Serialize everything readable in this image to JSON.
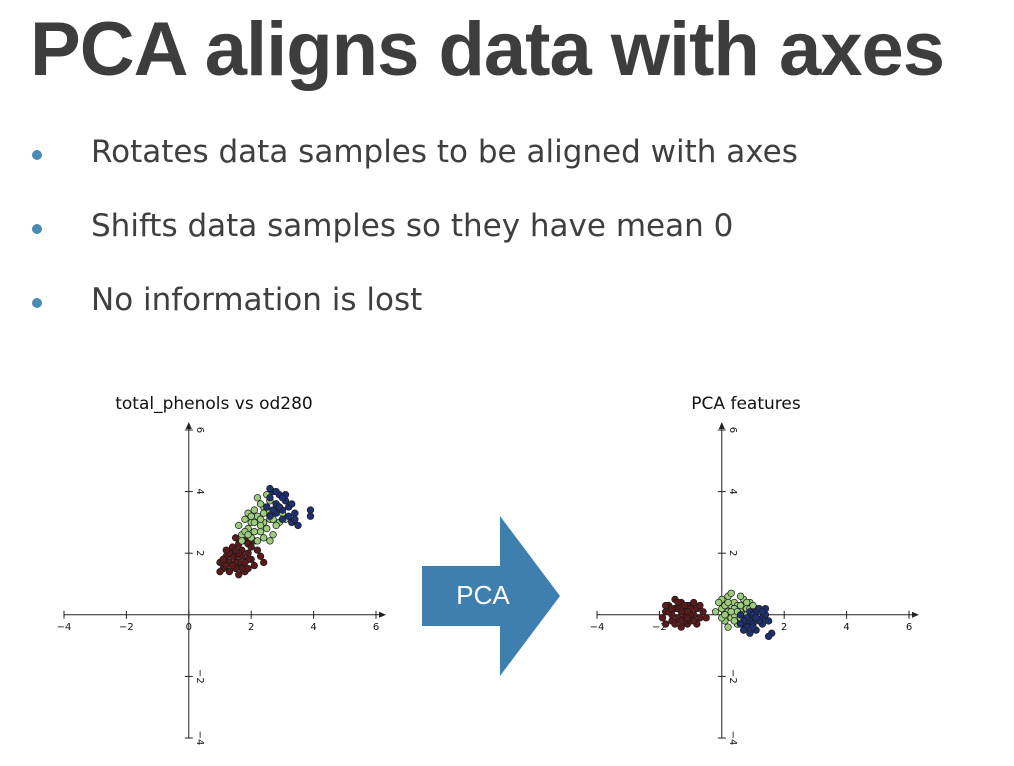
{
  "slide": {
    "title": "PCA aligns data with axes",
    "bullets": [
      "Rotates data samples to be aligned with axes",
      "Shifts data samples so they have mean 0",
      "No information is lost"
    ],
    "arrow_label": "PCA"
  },
  "colors": {
    "bullet": "#4a8ab3",
    "arrow": "#3f7fb0",
    "class_0": "#5b1a1a",
    "class_1": "#9ccc7c",
    "class_2": "#1e2f72"
  },
  "chart_data": [
    {
      "type": "scatter",
      "title": "total_phenols vs od280",
      "xlim": [
        -4,
        6
      ],
      "ylim": [
        -4,
        6
      ],
      "xticks": [
        -4,
        -2,
        0,
        2,
        4,
        6
      ],
      "yticks": [
        -4,
        -2,
        2,
        4,
        6
      ],
      "tick_labels_x": [
        "−4",
        "−2",
        "0",
        "2",
        "4",
        "6"
      ],
      "tick_labels_y": [
        "−4",
        "−2",
        "2",
        "4",
        "6"
      ],
      "grid": false,
      "series": [
        {
          "color_key": "class_0",
          "points": [
            [
              1.1,
              1.5
            ],
            [
              1.3,
              1.7
            ],
            [
              1.5,
              1.9
            ],
            [
              1.7,
              1.6
            ],
            [
              1.9,
              2.0
            ],
            [
              1.4,
              2.2
            ],
            [
              1.8,
              2.4
            ],
            [
              1.2,
              1.9
            ],
            [
              1.6,
              1.3
            ],
            [
              2.0,
              1.8
            ],
            [
              1.0,
              1.7
            ],
            [
              1.5,
              1.5
            ],
            [
              1.7,
              2.1
            ],
            [
              2.1,
              1.6
            ],
            [
              1.3,
              1.4
            ],
            [
              1.9,
              2.3
            ],
            [
              1.5,
              2.5
            ],
            [
              1.1,
              1.8
            ],
            [
              2.2,
              2.1
            ],
            [
              1.6,
              1.7
            ],
            [
              1.4,
              1.9
            ],
            [
              1.8,
              1.4
            ],
            [
              2.0,
              2.2
            ],
            [
              1.2,
              1.6
            ],
            [
              1.7,
              1.9
            ],
            [
              1.5,
              1.7
            ],
            [
              1.9,
              1.8
            ],
            [
              1.3,
              2.0
            ],
            [
              1.6,
              2.3
            ],
            [
              2.3,
              1.9
            ],
            [
              1.0,
              1.4
            ],
            [
              1.4,
              1.6
            ],
            [
              1.8,
              1.7
            ],
            [
              2.1,
              2.4
            ],
            [
              1.6,
              2.0
            ],
            [
              1.2,
              2.1
            ],
            [
              1.9,
              1.5
            ],
            [
              1.5,
              2.1
            ],
            [
              1.7,
              1.5
            ],
            [
              2.4,
              1.7
            ]
          ]
        },
        {
          "color_key": "class_1",
          "points": [
            [
              1.7,
              2.6
            ],
            [
              2.0,
              3.0
            ],
            [
              2.2,
              3.2
            ],
            [
              2.4,
              3.5
            ],
            [
              1.9,
              2.8
            ],
            [
              2.6,
              3.1
            ],
            [
              2.3,
              2.7
            ],
            [
              2.1,
              3.4
            ],
            [
              2.8,
              3.6
            ],
            [
              1.8,
              3.1
            ],
            [
              2.5,
              2.8
            ],
            [
              2.7,
              3.3
            ],
            [
              2.0,
              2.5
            ],
            [
              2.3,
              3.6
            ],
            [
              2.9,
              3.0
            ],
            [
              1.6,
              2.9
            ],
            [
              2.2,
              2.4
            ],
            [
              2.4,
              3.0
            ],
            [
              2.6,
              3.7
            ],
            [
              1.9,
              3.3
            ],
            [
              2.1,
              2.7
            ],
            [
              2.8,
              2.9
            ],
            [
              2.5,
              3.4
            ],
            [
              2.0,
              3.2
            ],
            [
              2.3,
              3.1
            ],
            [
              2.7,
              2.6
            ],
            [
              1.7,
              2.4
            ],
            [
              2.4,
              2.5
            ],
            [
              2.2,
              3.8
            ],
            [
              3.0,
              3.3
            ],
            [
              2.6,
              2.4
            ],
            [
              1.8,
              2.7
            ],
            [
              2.9,
              3.5
            ],
            [
              2.1,
              3.0
            ],
            [
              2.5,
              3.9
            ],
            [
              2.3,
              2.9
            ],
            [
              3.1,
              3.1
            ],
            [
              1.9,
              2.6
            ],
            [
              2.7,
              3.1
            ],
            [
              2.4,
              3.3
            ]
          ]
        },
        {
          "color_key": "class_2",
          "points": [
            [
              2.6,
              3.8
            ],
            [
              2.8,
              3.6
            ],
            [
              3.0,
              3.4
            ],
            [
              2.7,
              4.0
            ],
            [
              3.2,
              3.2
            ],
            [
              2.9,
              3.9
            ],
            [
              3.3,
              3.0
            ],
            [
              2.5,
              3.5
            ],
            [
              3.1,
              3.7
            ],
            [
              2.8,
              3.3
            ],
            [
              3.4,
              3.3
            ],
            [
              2.6,
              4.1
            ],
            [
              3.0,
              3.1
            ],
            [
              2.9,
              3.5
            ],
            [
              3.2,
              3.5
            ],
            [
              3.5,
              2.9
            ],
            [
              2.7,
              3.4
            ],
            [
              3.1,
              3.9
            ],
            [
              2.8,
              4.0
            ],
            [
              3.3,
              3.6
            ],
            [
              3.9,
              3.4
            ],
            [
              3.9,
              3.2
            ],
            [
              2.6,
              3.2
            ],
            [
              3.0,
              3.8
            ],
            [
              3.4,
              3.1
            ]
          ]
        }
      ]
    },
    {
      "type": "scatter",
      "title": "PCA features",
      "xlim": [
        -4,
        6
      ],
      "ylim": [
        -4,
        6
      ],
      "xticks": [
        -4,
        -2,
        0,
        2,
        4,
        6
      ],
      "yticks": [
        -4,
        -2,
        2,
        4,
        6
      ],
      "tick_labels_x": [
        "−4",
        "−2",
        "",
        "2",
        "4",
        "6"
      ],
      "tick_labels_y": [
        "−4",
        "−2",
        "2",
        "4",
        "6"
      ],
      "grid": false,
      "series": [
        {
          "color_key": "class_0",
          "points": [
            [
              -1.8,
              0.1
            ],
            [
              -1.5,
              0.2
            ],
            [
              -1.2,
              -0.1
            ],
            [
              -1.0,
              0.3
            ],
            [
              -1.6,
              -0.2
            ],
            [
              -1.3,
              0.4
            ],
            [
              -0.9,
              0.0
            ],
            [
              -1.1,
              -0.3
            ],
            [
              -1.7,
              0.3
            ],
            [
              -1.4,
              -0.1
            ],
            [
              -0.8,
              0.2
            ],
            [
              -1.2,
              0.1
            ],
            [
              -1.9,
              -0.1
            ],
            [
              -1.0,
              -0.2
            ],
            [
              -1.5,
              0.5
            ],
            [
              -0.7,
              -0.1
            ],
            [
              -1.3,
              -0.4
            ],
            [
              -1.6,
              0.0
            ],
            [
              -1.1,
              0.3
            ],
            [
              -0.9,
              0.4
            ],
            [
              -1.4,
              0.2
            ],
            [
              -1.8,
              -0.3
            ],
            [
              -1.2,
              -0.2
            ],
            [
              -0.6,
              0.1
            ],
            [
              -1.0,
              0.0
            ],
            [
              -1.5,
              -0.3
            ],
            [
              -1.3,
              0.1
            ],
            [
              -0.8,
              -0.3
            ],
            [
              -1.7,
              0.1
            ],
            [
              -1.1,
              -0.1
            ],
            [
              -1.4,
              0.4
            ],
            [
              -0.9,
              -0.2
            ],
            [
              -1.6,
              0.2
            ],
            [
              -1.2,
              0.3
            ],
            [
              -0.7,
              0.3
            ],
            [
              -1.0,
              0.2
            ],
            [
              -1.3,
              -0.2
            ],
            [
              -0.5,
              -0.1
            ],
            [
              -1.8,
              0.3
            ],
            [
              -1.1,
              0.1
            ]
          ]
        },
        {
          "color_key": "class_1",
          "points": [
            [
              0.0,
              0.5
            ],
            [
              0.3,
              0.3
            ],
            [
              0.6,
              0.1
            ],
            [
              0.1,
              -0.2
            ],
            [
              0.4,
              0.4
            ],
            [
              0.8,
              0.2
            ],
            [
              0.2,
              0.1
            ],
            [
              0.5,
              -0.3
            ],
            [
              0.9,
              0.4
            ],
            [
              0.0,
              0.2
            ],
            [
              0.3,
              -0.1
            ],
            [
              0.7,
              0.5
            ],
            [
              0.2,
              0.6
            ],
            [
              0.6,
              -0.1
            ],
            [
              1.0,
              0.0
            ],
            [
              0.1,
              0.3
            ],
            [
              0.4,
              0.0
            ],
            [
              0.8,
              -0.2
            ],
            [
              0.3,
              0.7
            ],
            [
              0.5,
              0.3
            ],
            [
              0.7,
              0.0
            ],
            [
              -0.2,
              0.1
            ],
            [
              0.9,
              0.2
            ],
            [
              0.2,
              -0.4
            ],
            [
              0.6,
              0.6
            ],
            [
              1.1,
              0.2
            ],
            [
              0.4,
              0.2
            ],
            [
              0.0,
              -0.1
            ],
            [
              0.8,
              0.4
            ],
            [
              0.5,
              0.1
            ],
            [
              0.2,
              0.4
            ],
            [
              0.7,
              -0.3
            ],
            [
              -0.1,
              0.4
            ],
            [
              0.9,
              -0.1
            ],
            [
              0.3,
              0.1
            ],
            [
              1.0,
              0.3
            ],
            [
              0.6,
              0.3
            ],
            [
              0.1,
              0.0
            ],
            [
              0.4,
              -0.2
            ],
            [
              0.8,
              0.0
            ]
          ]
        },
        {
          "color_key": "class_2",
          "points": [
            [
              0.6,
              0.0
            ],
            [
              0.9,
              -0.2
            ],
            [
              1.1,
              0.1
            ],
            [
              0.8,
              -0.4
            ],
            [
              1.3,
              -0.1
            ],
            [
              1.0,
              -0.3
            ],
            [
              1.2,
              0.2
            ],
            [
              0.7,
              -0.5
            ],
            [
              1.4,
              0.0
            ],
            [
              0.9,
              0.1
            ],
            [
              1.1,
              -0.5
            ],
            [
              1.3,
              -0.3
            ],
            [
              0.8,
              -0.1
            ],
            [
              1.5,
              -0.2
            ],
            [
              1.0,
              0.0
            ],
            [
              1.2,
              -0.2
            ],
            [
              0.7,
              -0.2
            ],
            [
              1.4,
              0.2
            ],
            [
              0.9,
              -0.6
            ],
            [
              1.1,
              -0.1
            ],
            [
              1.6,
              -0.6
            ],
            [
              1.5,
              -0.7
            ],
            [
              0.6,
              -0.3
            ],
            [
              1.3,
              0.1
            ],
            [
              1.0,
              -0.4
            ]
          ]
        }
      ]
    }
  ]
}
